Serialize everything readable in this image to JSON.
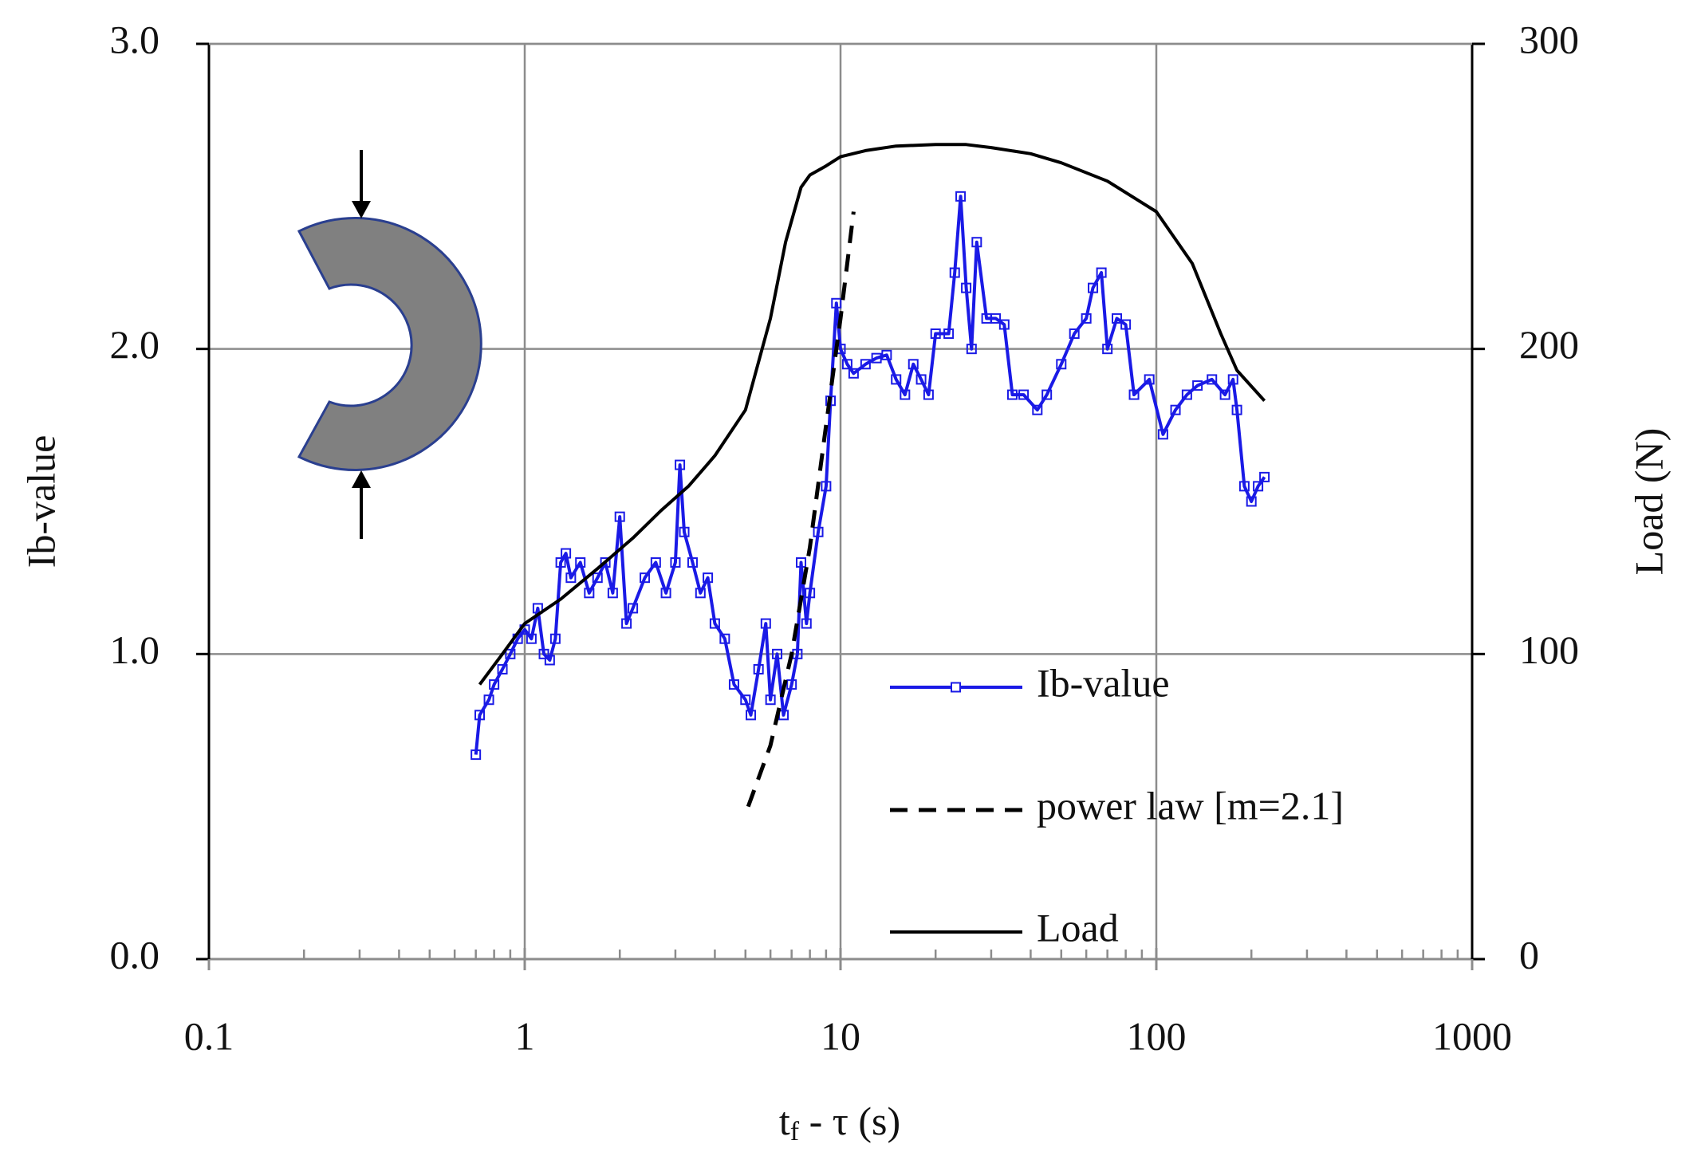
{
  "chart_data": {
    "type": "line",
    "xlabel_parts": [
      "t",
      "f",
      " - τ (s)"
    ],
    "ylabel": "Ib-value",
    "y2label": "Load (N)",
    "xscale": "log",
    "xlim": [
      0.1,
      1000
    ],
    "xticks": [
      0.1,
      1,
      10,
      100,
      1000
    ],
    "ylim": [
      0,
      3
    ],
    "yticks": [
      {
        "value": 0,
        "label": "0.0"
      },
      {
        "value": 1,
        "label": "1.0"
      },
      {
        "value": 2,
        "label": "2.0"
      },
      {
        "value": 3,
        "label": "3.0"
      }
    ],
    "y2lim": [
      0,
      300
    ],
    "y2ticks": [
      0,
      100,
      200,
      300
    ],
    "grid": true,
    "series": [
      {
        "name": "Ib-value",
        "color": "#1a1ae6",
        "style": "marker",
        "x": [
          0.7,
          0.72,
          0.77,
          0.8,
          0.85,
          0.9,
          0.95,
          1.0,
          1.05,
          1.1,
          1.15,
          1.2,
          1.25,
          1.3,
          1.35,
          1.4,
          1.5,
          1.6,
          1.7,
          1.8,
          1.9,
          2.0,
          2.1,
          2.2,
          2.4,
          2.6,
          2.8,
          3.0,
          3.1,
          3.2,
          3.4,
          3.6,
          3.8,
          4.0,
          4.3,
          4.6,
          5.0,
          5.2,
          5.5,
          5.8,
          6.0,
          6.3,
          6.6,
          7.0,
          7.3,
          7.5,
          7.8,
          8.0,
          8.5,
          9.0,
          9.3,
          9.7,
          10,
          10.5,
          11,
          12,
          13,
          14,
          15,
          16,
          17,
          18,
          19,
          20,
          22,
          23,
          24,
          25,
          26,
          27,
          29,
          31,
          33,
          35,
          38,
          42,
          45,
          50,
          55,
          60,
          63,
          67,
          70,
          75,
          80,
          85,
          95,
          105,
          115,
          125,
          135,
          150,
          165,
          175,
          180,
          190,
          200,
          210,
          220
        ],
        "values": [
          0.67,
          0.8,
          0.85,
          0.9,
          0.95,
          1.0,
          1.05,
          1.08,
          1.05,
          1.15,
          1.0,
          0.98,
          1.05,
          1.3,
          1.33,
          1.25,
          1.3,
          1.2,
          1.25,
          1.3,
          1.2,
          1.45,
          1.1,
          1.15,
          1.25,
          1.3,
          1.2,
          1.3,
          1.62,
          1.4,
          1.3,
          1.2,
          1.25,
          1.1,
          1.05,
          0.9,
          0.85,
          0.8,
          0.95,
          1.1,
          0.85,
          1.0,
          0.8,
          0.9,
          1.0,
          1.3,
          1.1,
          1.2,
          1.4,
          1.55,
          1.83,
          2.15,
          2.0,
          1.95,
          1.92,
          1.95,
          1.97,
          1.98,
          1.9,
          1.85,
          1.95,
          1.9,
          1.85,
          2.05,
          2.05,
          2.25,
          2.5,
          2.2,
          2.0,
          2.35,
          2.1,
          2.1,
          2.08,
          1.85,
          1.85,
          1.8,
          1.85,
          1.95,
          2.05,
          2.1,
          2.2,
          2.25,
          2.0,
          2.1,
          2.08,
          1.85,
          1.9,
          1.72,
          1.8,
          1.85,
          1.88,
          1.9,
          1.85,
          1.9,
          1.8,
          1.55,
          1.5,
          1.55,
          1.58
        ]
      },
      {
        "name": "power law [m=2.1]",
        "color": "#000000",
        "style": "dashed",
        "x": [
          5.1,
          6.0,
          7.0,
          8.0,
          9.0,
          10.0,
          11.0
        ],
        "values": [
          0.5,
          0.7,
          1.0,
          1.35,
          1.75,
          2.1,
          2.45
        ]
      },
      {
        "name": "Load",
        "color": "#000000",
        "style": "solid",
        "axis": "y2",
        "x": [
          0.72,
          0.85,
          1.0,
          1.3,
          1.7,
          2.2,
          2.7,
          3.3,
          4.0,
          5.0,
          6.0,
          6.7,
          7.5,
          8,
          9,
          10,
          12,
          15,
          20,
          25,
          30,
          40,
          50,
          70,
          100,
          130,
          160,
          180,
          220
        ],
        "values": [
          90,
          100,
          110,
          118,
          128,
          138,
          147,
          155,
          165,
          180,
          210,
          235,
          253,
          257,
          260,
          263,
          265,
          266.5,
          267,
          267,
          266,
          264,
          261,
          255,
          245,
          228,
          205,
          193,
          183
        ]
      }
    ]
  }
}
